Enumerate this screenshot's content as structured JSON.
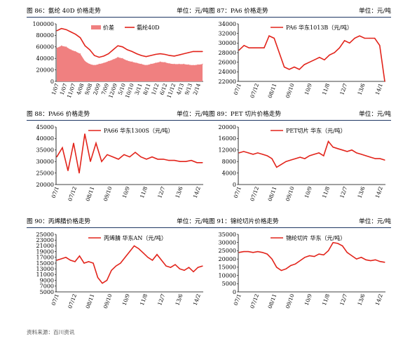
{
  "page": {
    "source": "资料来源：百川资讯"
  },
  "colors": {
    "line": "#e2231a",
    "area": "#f08080",
    "header_rule": "#1f3864"
  },
  "panels": [
    {
      "title": "图 86：氨纶 40D 价格走势",
      "unit": "单位：元/吨"
    },
    {
      "title": "图 87：PA6 价格走势",
      "unit": "单位：元/吨"
    },
    {
      "title": "图 88：PA66 价格走势",
      "unit": "单位：元/吨"
    },
    {
      "title": "图 89：PET 切片价格走势",
      "unit": "单位：元/吨"
    },
    {
      "title": "图 90：丙烯腈价格走势",
      "unit": "单位：元/吨"
    },
    {
      "title": "图 91：锦纶切片价格走势",
      "unit": "单位：元/吨"
    }
  ],
  "chart_data": [
    {
      "type": "area",
      "title": "",
      "ylim": [
        0,
        100000
      ],
      "yticks": [
        0,
        20000,
        40000,
        60000,
        80000,
        100000
      ],
      "xticks": [
        "1/07",
        "1/07",
        "11/07",
        "4/08",
        "9/08",
        "2/09",
        "7/09",
        "12/09",
        "5/10",
        "10/10",
        "3/11",
        "8/11",
        "1/12",
        "6/12",
        "11/12",
        "4/13",
        "9/13",
        "2/14"
      ],
      "series": [
        {
          "name": "价差",
          "kind": "area",
          "values": [
            58000,
            62000,
            60000,
            55000,
            52000,
            48000,
            35000,
            30000,
            28000,
            30000,
            32000,
            35000,
            38000,
            42000,
            40000,
            36000,
            34000,
            32000,
            30000,
            28000,
            30000,
            32000,
            34000,
            33000,
            31000,
            30000,
            30000,
            30000,
            29000,
            28000,
            29000,
            30000
          ]
        },
        {
          "name": "氨纶40D",
          "kind": "line",
          "values": [
            88000,
            92000,
            90000,
            86000,
            82000,
            76000,
            62000,
            55000,
            45000,
            42000,
            44000,
            48000,
            55000,
            62000,
            60000,
            55000,
            52000,
            48000,
            45000,
            43000,
            45000,
            47000,
            48000,
            47000,
            45000,
            44000,
            46000,
            48000,
            50000,
            52000,
            52000,
            52000
          ]
        }
      ]
    },
    {
      "type": "line",
      "title": "",
      "ylim": [
        22000,
        34000
      ],
      "yticks": [
        22000,
        24000,
        26000,
        28000,
        30000,
        32000,
        34000
      ],
      "xticks": [
        "07/1",
        "07/12",
        "08/11",
        "09/10",
        "10/9",
        "11/8",
        "12/7",
        "13/6",
        "14/1"
      ],
      "series": [
        {
          "name": "PA6 华东1013B（元/吨）",
          "values": [
            28500,
            29500,
            29000,
            29000,
            29000,
            29000,
            31500,
            31000,
            28000,
            25000,
            24500,
            25000,
            24500,
            25500,
            26000,
            26500,
            27000,
            26500,
            27500,
            28000,
            29000,
            30500,
            30000,
            31000,
            31500,
            31000,
            31000,
            31000,
            29500,
            22000
          ]
        }
      ]
    },
    {
      "type": "line",
      "title": "",
      "ylim": [
        20000,
        45000
      ],
      "yticks": [
        20000,
        25000,
        30000,
        35000,
        40000,
        45000
      ],
      "xticks": [
        "07/1",
        "07/12",
        "08/11",
        "09/10",
        "10/9",
        "11/8",
        "12/7",
        "13/6",
        "14/2"
      ],
      "series": [
        {
          "name": "PA66 华东1300S（元/吨）",
          "values": [
            32000,
            36000,
            26000,
            38000,
            25000,
            42000,
            30000,
            38000,
            30000,
            33000,
            32000,
            31000,
            33000,
            32000,
            34000,
            32000,
            31000,
            32000,
            31000,
            31000,
            30500,
            30500,
            30000,
            30000,
            30500,
            29500,
            29500
          ]
        }
      ]
    },
    {
      "type": "line",
      "title": "",
      "ylim": [
        0,
        20000
      ],
      "yticks": [
        0,
        4000,
        8000,
        12000,
        16000,
        20000
      ],
      "xticks": [
        "07/1",
        "07/12",
        "08/11",
        "09/10",
        "10/9",
        "11/8",
        "12/7",
        "13/6",
        "14/2"
      ],
      "series": [
        {
          "name": "PET切片 华东（元/吨）",
          "values": [
            11000,
            11500,
            11000,
            10500,
            11000,
            10500,
            10000,
            9000,
            6000,
            7000,
            8000,
            8500,
            9000,
            9500,
            9000,
            10000,
            10500,
            11000,
            10000,
            15000,
            13000,
            12500,
            12000,
            11500,
            12000,
            11000,
            10500,
            10000,
            9500,
            9000,
            9000,
            8500
          ]
        }
      ]
    },
    {
      "type": "line",
      "title": "",
      "ylim": [
        5000,
        25000
      ],
      "yticks": [
        5000,
        7000,
        9000,
        11000,
        13000,
        15000,
        17000,
        19000,
        21000,
        23000,
        25000
      ],
      "xticks": [
        "07/1",
        "07/12",
        "08/11",
        "09/10",
        "10/9",
        "11/8",
        "12/7",
        "13/6",
        "14/2"
      ],
      "series": [
        {
          "name": "丙烯腈 华东AN（元/吨）",
          "values": [
            16000,
            16500,
            17000,
            16000,
            15500,
            17500,
            15000,
            15500,
            15000,
            10000,
            8000,
            9000,
            12500,
            14000,
            15000,
            17000,
            19000,
            21000,
            20000,
            18500,
            17000,
            16000,
            18000,
            16000,
            14000,
            13500,
            14500,
            13000,
            12500,
            13500,
            12000,
            13500,
            14000
          ]
        }
      ]
    },
    {
      "type": "line",
      "title": "",
      "ylim": [
        0,
        35000
      ],
      "yticks": [
        0,
        5000,
        10000,
        15000,
        20000,
        25000,
        30000,
        35000
      ],
      "xticks": [
        "07/1",
        "07/12",
        "08/11",
        "09/10",
        "10/9",
        "11/8",
        "12/7",
        "13/6",
        "14/2"
      ],
      "series": [
        {
          "name": "锦纶切片 华东（元/吨）",
          "values": [
            24000,
            24500,
            24500,
            24000,
            24500,
            24000,
            23000,
            20000,
            15000,
            13000,
            14000,
            16000,
            17000,
            19000,
            21000,
            22000,
            21500,
            23000,
            22500,
            25000,
            30000,
            29500,
            28000,
            24000,
            22000,
            20000,
            21000,
            19500,
            19000,
            19500,
            18500,
            18000
          ]
        }
      ]
    }
  ]
}
